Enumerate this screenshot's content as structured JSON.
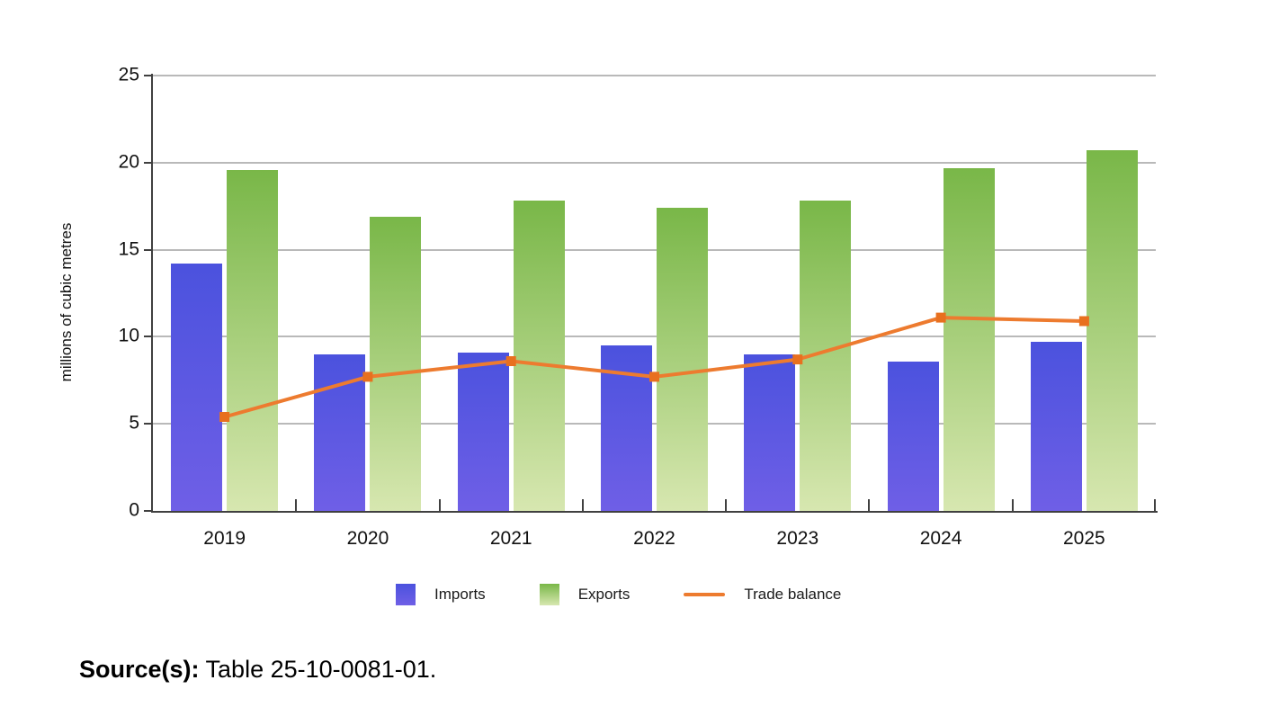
{
  "chart_data": {
    "type": "bar",
    "subtype": "grouped bars with line overlay",
    "categories": [
      "2019",
      "2020",
      "2021",
      "2022",
      "2023",
      "2024",
      "2025"
    ],
    "series": [
      {
        "name": "Imports",
        "type": "bar",
        "values": [
          14.2,
          9.0,
          9.1,
          9.5,
          9.0,
          8.6,
          9.7
        ],
        "color_top": "#4b52de",
        "color_bottom": "#6f5fe6"
      },
      {
        "name": "Exports",
        "type": "bar",
        "values": [
          19.6,
          16.9,
          17.8,
          17.4,
          17.8,
          19.7,
          20.7
        ],
        "color_top": "#79b748",
        "color_bottom": "#d7e7b0"
      },
      {
        "name": "Trade balance",
        "type": "line",
        "values": [
          5.4,
          7.7,
          8.6,
          7.7,
          8.7,
          11.1,
          10.9
        ],
        "color": "#ed7b2f",
        "marker": "square",
        "marker_color": "#e8701f"
      }
    ],
    "title": "",
    "xlabel": "",
    "ylabel": "millions of cubic metres",
    "ylim": [
      0,
      25
    ],
    "yticks": [
      0,
      5,
      10,
      15,
      20,
      25
    ],
    "grid": true,
    "legend_position": "bottom"
  },
  "axis_colors": {
    "axis_line": "#404040",
    "gridline": "#b9b9b9",
    "tick_text": "#111111"
  },
  "source_note": {
    "prefix": "Source(s):",
    "text": " Table 25-10-0081-01."
  }
}
